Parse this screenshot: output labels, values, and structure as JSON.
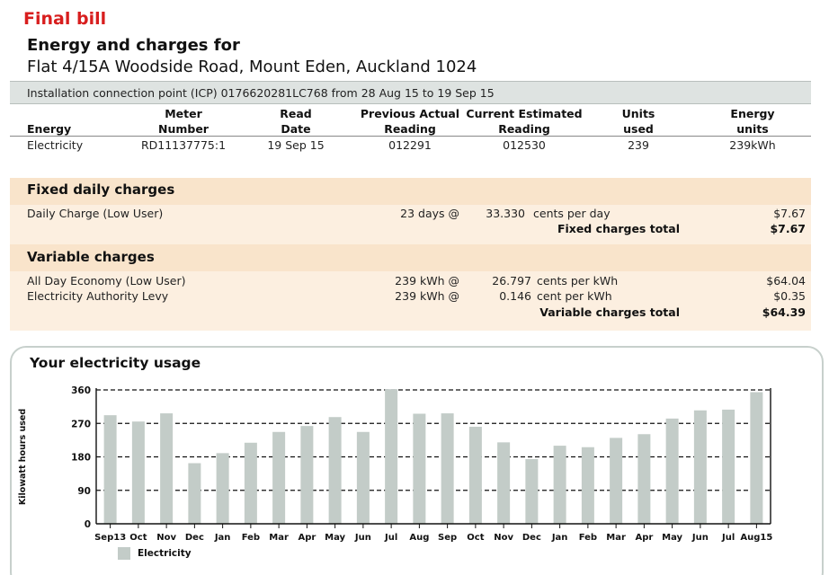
{
  "header": {
    "final_bill": "Final bill",
    "title": "Energy and charges for",
    "address": "Flat 4/15A Woodside Road, Mount Eden, Auckland 1024"
  },
  "icp": {
    "text": "Installation connection point (ICP) 0176620281LC768 from 28 Aug 15 to 19 Sep 15"
  },
  "meter_table": {
    "headers": {
      "energy": "Energy",
      "meter_number_1": "Meter",
      "meter_number_2": "Number",
      "read_date_1": "Read",
      "read_date_2": "Date",
      "previous_1": "Previous Actual",
      "previous_2": "Reading",
      "current_1": "Current Estimated",
      "current_2": "Reading",
      "units_1": "Units",
      "units_2": "used",
      "energy_units_1": "Energy",
      "energy_units_2": "units"
    },
    "row": {
      "energy": "Electricity",
      "meter_number": "RD11137775:1",
      "read_date": "19 Sep 15",
      "previous": "012291",
      "current": "012530",
      "units_used": "239",
      "energy_units": "239kWh"
    }
  },
  "fixed": {
    "title": "Fixed daily charges",
    "items": [
      {
        "label": "Daily Charge (Low User)",
        "qty": "23 days @",
        "rate": "33.330",
        "unit": "cents per day",
        "amount": "$7.67"
      }
    ],
    "total_label": "Fixed charges total",
    "total": "$7.67"
  },
  "variable": {
    "title": "Variable charges",
    "items": [
      {
        "label": "All Day Economy (Low User)",
        "qty": "239 kWh @",
        "rate": "26.797",
        "unit": "cents per kWh",
        "amount": "$64.04"
      },
      {
        "label": "Electricity Authority Levy",
        "qty": "239 kWh @",
        "rate": "0.146",
        "unit": "cent per kWh",
        "amount": "$0.35"
      }
    ],
    "total_label": "Variable charges total",
    "total": "$64.39"
  },
  "usage": {
    "title": "Your electricity usage",
    "legend": "Electricity"
  },
  "chart_data": {
    "type": "bar",
    "title": "Your electricity usage",
    "ylabel": "Kilowatt hours used",
    "xlabel": "",
    "ylim": [
      0,
      360
    ],
    "yticks": [
      0,
      90,
      180,
      270,
      360
    ],
    "grid": "dashed horizontal",
    "legend_position": "bottom-left",
    "categories": [
      "Sep13",
      "Oct",
      "Nov",
      "Dec",
      "Jan",
      "Feb",
      "Mar",
      "Apr",
      "May",
      "Jun",
      "Jul",
      "Aug",
      "Sep",
      "Oct",
      "Nov",
      "Dec",
      "Jan",
      "Feb",
      "Mar",
      "Apr",
      "May",
      "Jun",
      "Jul",
      "Aug15"
    ],
    "series": [
      {
        "name": "Electricity",
        "color": "#c3ccc8",
        "values": [
          292,
          275,
          297,
          163,
          190,
          218,
          247,
          263,
          287,
          247,
          362,
          296,
          297,
          261,
          219,
          174,
          210,
          206,
          231,
          241,
          283,
          305,
          307,
          354
        ]
      }
    ]
  }
}
